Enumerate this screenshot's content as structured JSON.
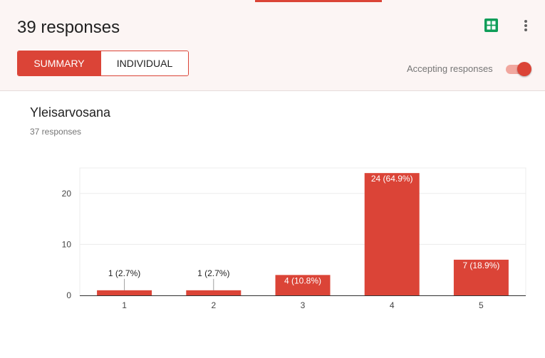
{
  "header": {
    "title": "39 responses",
    "tabs": [
      {
        "label": "SUMMARY",
        "active": true
      },
      {
        "label": "INDIVIDUAL",
        "active": false
      }
    ],
    "accepting_label": "Accepting responses",
    "accepting_enabled": true,
    "sheets_icon": "google-sheets-icon",
    "more_icon": "more-vert-icon"
  },
  "colors": {
    "accent": "#db4437",
    "header_bg": "#fcf5f4",
    "sheets_green": "#0f9d58"
  },
  "question": {
    "title": "Yleisarvosana",
    "responses": "37 responses"
  },
  "chart_data": {
    "type": "bar",
    "categories": [
      "1",
      "2",
      "3",
      "4",
      "5"
    ],
    "values": [
      1,
      1,
      4,
      24,
      7
    ],
    "data_labels": [
      "1 (2.7%)",
      "1 (2.7%)",
      "4 (10.8%)",
      "24 (64.9%)",
      "7 (18.9%)"
    ],
    "yticks": [
      0,
      10,
      20
    ],
    "ylim": [
      0,
      25
    ],
    "bar_color": "#db4437",
    "grid": true
  }
}
